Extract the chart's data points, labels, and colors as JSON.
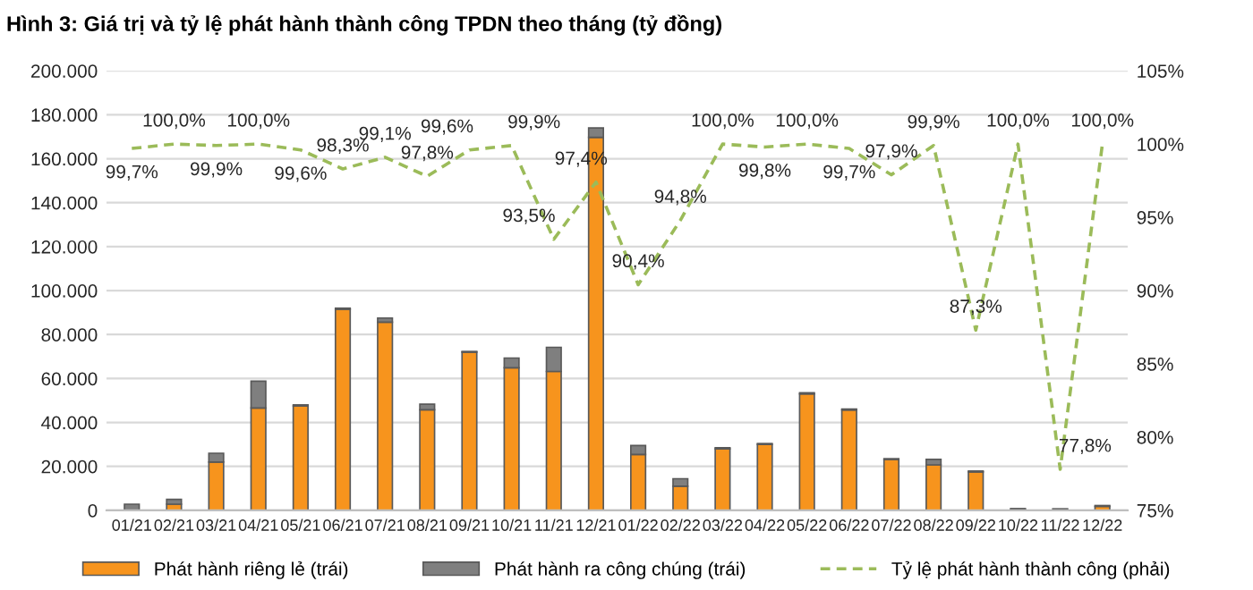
{
  "chart_data": {
    "type": "bar",
    "title": "Hình 3: Giá trị và tỷ lệ phát hành thành công TPDN theo tháng (tỷ đồng)",
    "categories": [
      "01/21",
      "02/21",
      "03/21",
      "04/21",
      "05/21",
      "06/21",
      "07/21",
      "08/21",
      "09/21",
      "10/21",
      "11/21",
      "12/21",
      "01/22",
      "02/22",
      "03/22",
      "04/22",
      "05/22",
      "06/22",
      "07/22",
      "08/22",
      "09/22",
      "10/22",
      "11/22",
      "12/22"
    ],
    "stacked": true,
    "series": [
      {
        "name": "Phát hành riêng lẻ (trái)",
        "color": "#f7941d",
        "values": [
          null,
          2800,
          22000,
          46600,
          47500,
          91500,
          85600,
          45800,
          72000,
          64900,
          63200,
          169700,
          25400,
          11000,
          28000,
          30000,
          53000,
          45700,
          23200,
          20700,
          17500,
          300,
          200,
          1800
        ]
      },
      {
        "name": "Phát hành ra công chúng (trái)",
        "color": "#7f7f7f",
        "values": [
          2800,
          2200,
          4000,
          12200,
          500,
          500,
          1900,
          2500,
          300,
          4400,
          11000,
          4300,
          4100,
          3400,
          500,
          400,
          500,
          400,
          300,
          2500,
          400,
          500,
          500,
          400
        ]
      },
      {
        "name": "Tỷ lệ phát hành thành công (phải)",
        "type": "line",
        "axis": "y2",
        "color": "#9bbb59",
        "line_style": "dashed",
        "values": [
          99.7,
          100.0,
          99.9,
          100.0,
          99.6,
          98.3,
          99.1,
          97.8,
          99.6,
          99.9,
          93.5,
          97.4,
          90.4,
          94.8,
          100.0,
          99.8,
          100.0,
          99.7,
          97.9,
          99.9,
          87.3,
          100.0,
          77.8,
          100.0
        ],
        "value_labels": [
          "99,7%",
          "100,0%",
          "99,9%",
          "100,0%",
          "99,6%",
          "98,3%",
          "99,1%",
          "97,8%",
          "99,6%",
          "99,9%",
          "93,5%",
          "97,4%",
          "90,4%",
          "94,8%",
          "100,0%",
          "99,8%",
          "100,0%",
          "99,7%",
          "97,9%",
          "99,9%",
          "87,3%",
          "100,0%",
          "77,8%",
          "100,0%"
        ]
      }
    ],
    "ylim": [
      0,
      200000
    ],
    "yticks": [
      {
        "value": 0,
        "label": "0"
      },
      {
        "value": 20000,
        "label": "20.000"
      },
      {
        "value": 40000,
        "label": "40.000"
      },
      {
        "value": 60000,
        "label": "60.000"
      },
      {
        "value": 80000,
        "label": "80.000"
      },
      {
        "value": 100000,
        "label": "100.000"
      },
      {
        "value": 120000,
        "label": "120.000"
      },
      {
        "value": 140000,
        "label": "140.000"
      },
      {
        "value": 160000,
        "label": "160.000"
      },
      {
        "value": 180000,
        "label": "180.000"
      },
      {
        "value": 200000,
        "label": "200.000"
      }
    ],
    "y2lim": [
      75,
      105
    ],
    "y2ticks": [
      {
        "value": 75,
        "label": "75%"
      },
      {
        "value": 80,
        "label": "80%"
      },
      {
        "value": 85,
        "label": "85%"
      },
      {
        "value": 90,
        "label": "90%"
      },
      {
        "value": 95,
        "label": "95%"
      },
      {
        "value": 100,
        "label": "100%"
      },
      {
        "value": 105,
        "label": "105%"
      }
    ],
    "grid": "y",
    "legend": "bottom"
  }
}
